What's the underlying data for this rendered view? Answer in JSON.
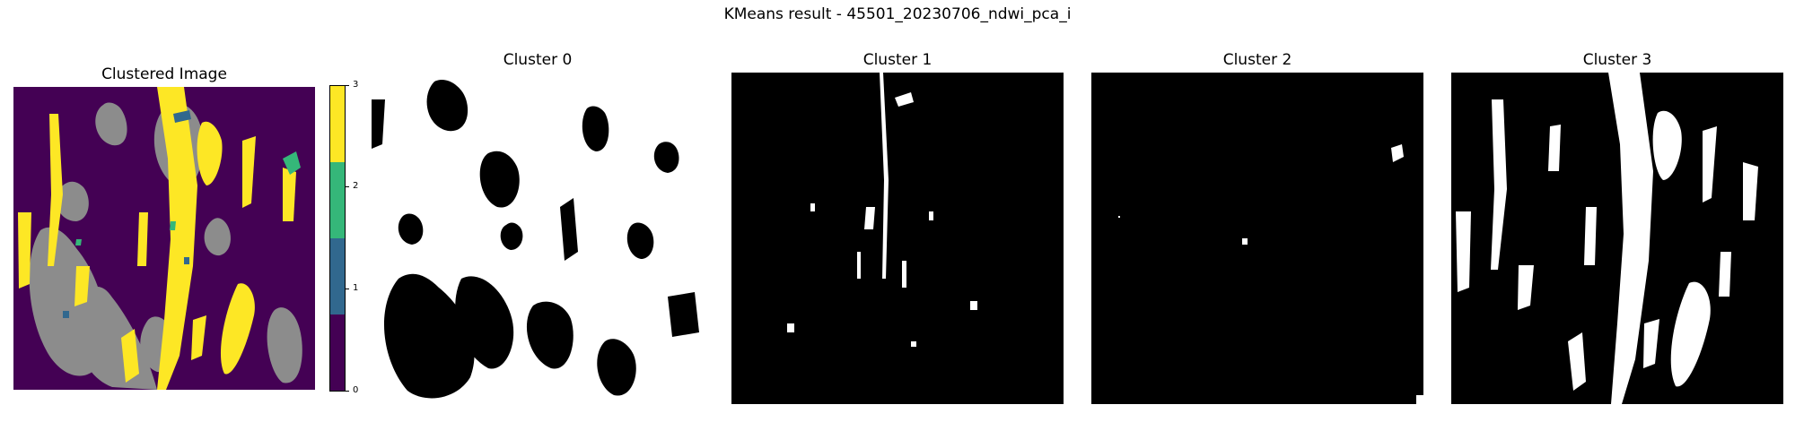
{
  "figure": {
    "title": "KMeans result - 45501_20230706_ndwi_pca_i"
  },
  "clustered_panel": {
    "title": "Clustered Image",
    "colors": {
      "cluster_0": "#440154",
      "cluster_1": "#31688e",
      "cluster_2": "#35b779",
      "cluster_3": "#fde725",
      "nodata": "#8c8c8c"
    }
  },
  "colorbar": {
    "ticks": [
      "0",
      "1",
      "2",
      "3"
    ],
    "colors": [
      "#440154",
      "#31688e",
      "#35b779",
      "#fde725"
    ]
  },
  "mask_panels": [
    {
      "title": "Cluster 0",
      "foreground": "#ffffff",
      "background": "#000000"
    },
    {
      "title": "Cluster 1",
      "foreground": "#ffffff",
      "background": "#000000"
    },
    {
      "title": "Cluster 2",
      "foreground": "#ffffff",
      "background": "#000000"
    },
    {
      "title": "Cluster 3",
      "foreground": "#ffffff",
      "background": "#000000"
    }
  ]
}
